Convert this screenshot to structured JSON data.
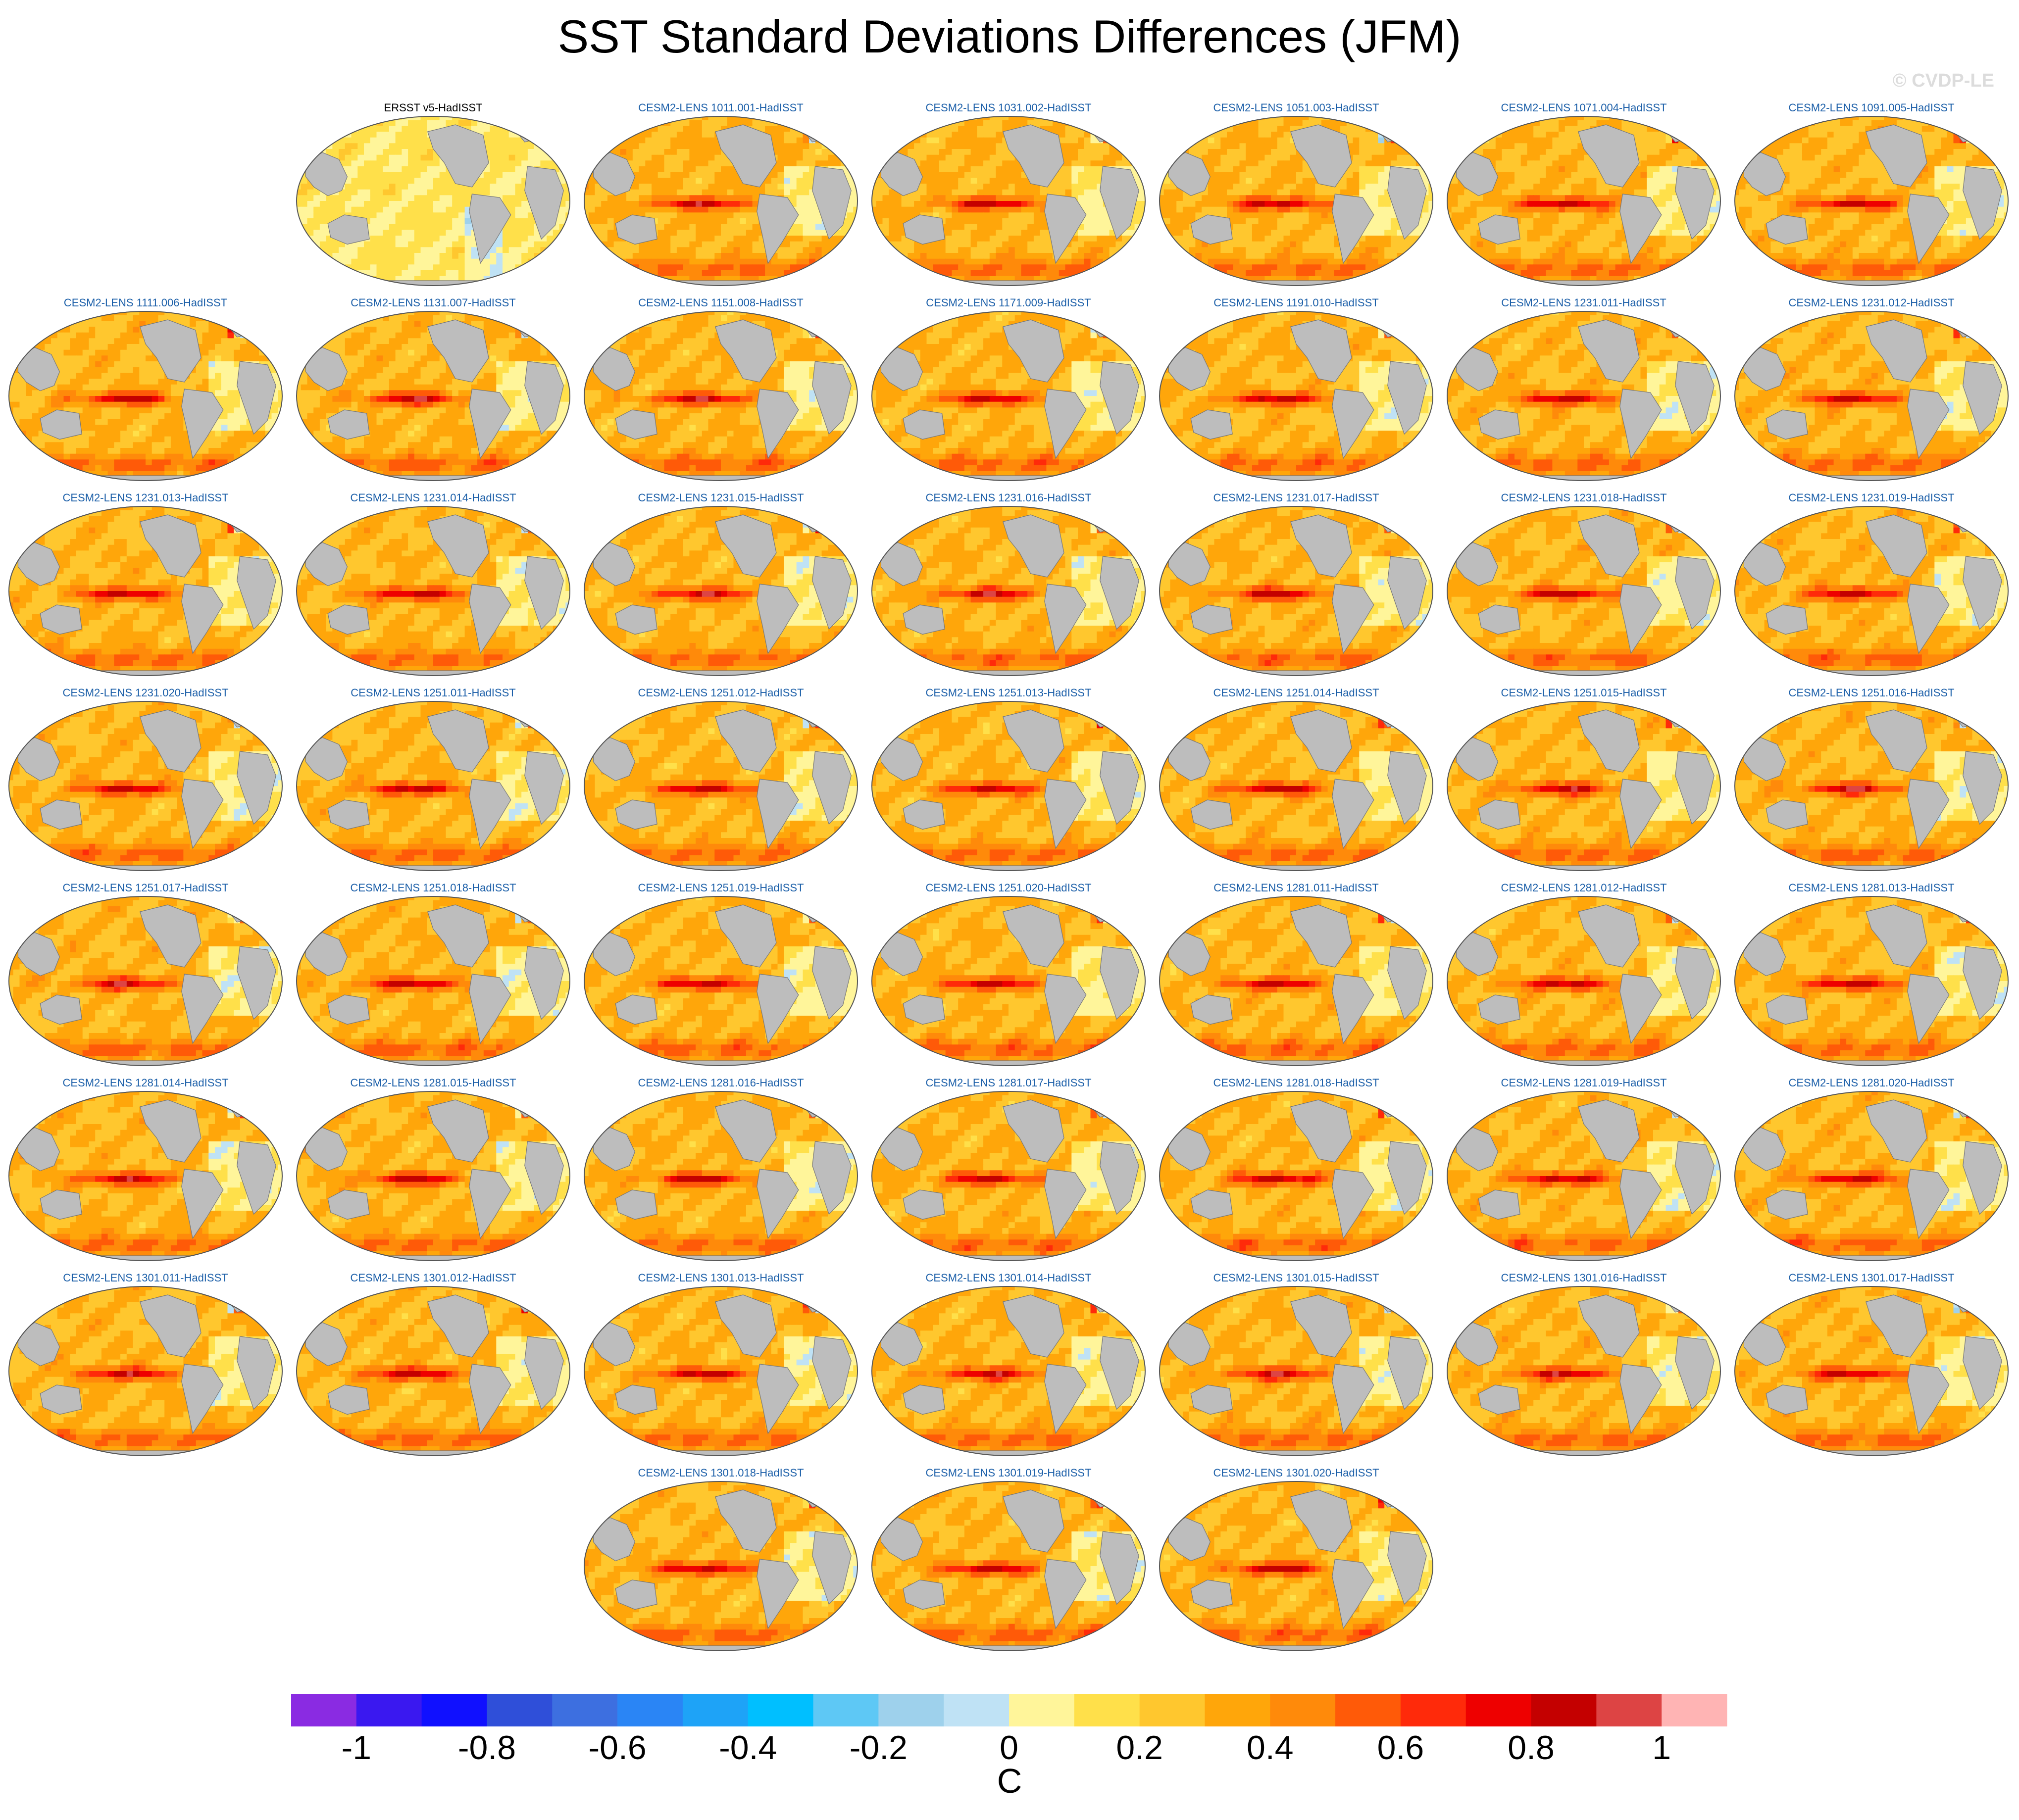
{
  "title": "SST Standard Deviations Differences (JFM)",
  "watermark": "© CVDP-LE",
  "chart_data": {
    "type": "heatmap",
    "variable": "SST standard deviation difference",
    "season": "JFM",
    "projection": "Robinson-like global map, Pacific-centered",
    "land_color": "#bdbdbd",
    "panel_title_colors": {
      "observations": "#000000",
      "model": "#1a5ea8"
    },
    "panel_rows": [
      [
        "ERSST v5-HadISST",
        "CESM2-LENS 1011.001-HadISST",
        "CESM2-LENS 1031.002-HadISST",
        "CESM2-LENS 1051.003-HadISST",
        "CESM2-LENS 1071.004-HadISST",
        "CESM2-LENS 1091.005-HadISST"
      ],
      [
        "CESM2-LENS 1111.006-HadISST",
        "CESM2-LENS 1131.007-HadISST",
        "CESM2-LENS 1151.008-HadISST",
        "CESM2-LENS 1171.009-HadISST",
        "CESM2-LENS 1191.010-HadISST",
        "CESM2-LENS 1231.011-HadISST",
        "CESM2-LENS 1231.012-HadISST"
      ],
      [
        "CESM2-LENS 1231.013-HadISST",
        "CESM2-LENS 1231.014-HadISST",
        "CESM2-LENS 1231.015-HadISST",
        "CESM2-LENS 1231.016-HadISST",
        "CESM2-LENS 1231.017-HadISST",
        "CESM2-LENS 1231.018-HadISST",
        "CESM2-LENS 1231.019-HadISST"
      ],
      [
        "CESM2-LENS 1231.020-HadISST",
        "CESM2-LENS 1251.011-HadISST",
        "CESM2-LENS 1251.012-HadISST",
        "CESM2-LENS 1251.013-HadISST",
        "CESM2-LENS 1251.014-HadISST",
        "CESM2-LENS 1251.015-HadISST",
        "CESM2-LENS 1251.016-HadISST"
      ],
      [
        "CESM2-LENS 1251.017-HadISST",
        "CESM2-LENS 1251.018-HadISST",
        "CESM2-LENS 1251.019-HadISST",
        "CESM2-LENS 1251.020-HadISST",
        "CESM2-LENS 1281.011-HadISST",
        "CESM2-LENS 1281.012-HadISST",
        "CESM2-LENS 1281.013-HadISST"
      ],
      [
        "CESM2-LENS 1281.014-HadISST",
        "CESM2-LENS 1281.015-HadISST",
        "CESM2-LENS 1281.016-HadISST",
        "CESM2-LENS 1281.017-HadISST",
        "CESM2-LENS 1281.018-HadISST",
        "CESM2-LENS 1281.019-HadISST",
        "CESM2-LENS 1281.020-HadISST"
      ],
      [
        "CESM2-LENS 1301.011-HadISST",
        "CESM2-LENS 1301.012-HadISST",
        "CESM2-LENS 1301.013-HadISST",
        "CESM2-LENS 1301.014-HadISST",
        "CESM2-LENS 1301.015-HadISST",
        "CESM2-LENS 1301.016-HadISST",
        "CESM2-LENS 1301.017-HadISST"
      ],
      [
        "CESM2-LENS 1301.018-HadISST",
        "CESM2-LENS 1301.019-HadISST",
        "CESM2-LENS 1301.020-HadISST"
      ]
    ],
    "colorbar": {
      "units": "C",
      "boundaries": [
        -1.1,
        -1.0,
        -0.9,
        -0.8,
        -0.7,
        -0.6,
        -0.5,
        -0.4,
        -0.3,
        -0.2,
        -0.1,
        0,
        0.1,
        0.2,
        0.3,
        0.4,
        0.5,
        0.6,
        0.7,
        0.8,
        0.9,
        1.0,
        1.1
      ],
      "tick_labels": [
        "-1",
        "-0.8",
        "-0.6",
        "-0.4",
        "-0.2",
        "0",
        "0.2",
        "0.4",
        "0.6",
        "0.8",
        "1"
      ],
      "tick_values": [
        -1,
        -0.8,
        -0.6,
        -0.4,
        -0.2,
        0,
        0.2,
        0.4,
        0.6,
        0.8,
        1
      ],
      "colors": [
        "#8a2be2",
        "#3a18f0",
        "#1010ff",
        "#2f4fd9",
        "#3d6fe0",
        "#2a85f5",
        "#1ea3f7",
        "#00bfff",
        "#5ec8f5",
        "#9ed1ec",
        "#bfe2f5",
        "#fff59a",
        "#ffe04a",
        "#ffc72e",
        "#ffa60a",
        "#ff8a0a",
        "#ff5a08",
        "#ff2a0a",
        "#ee0000",
        "#c40000",
        "#dd4444",
        "#ffb4b4"
      ]
    }
  }
}
